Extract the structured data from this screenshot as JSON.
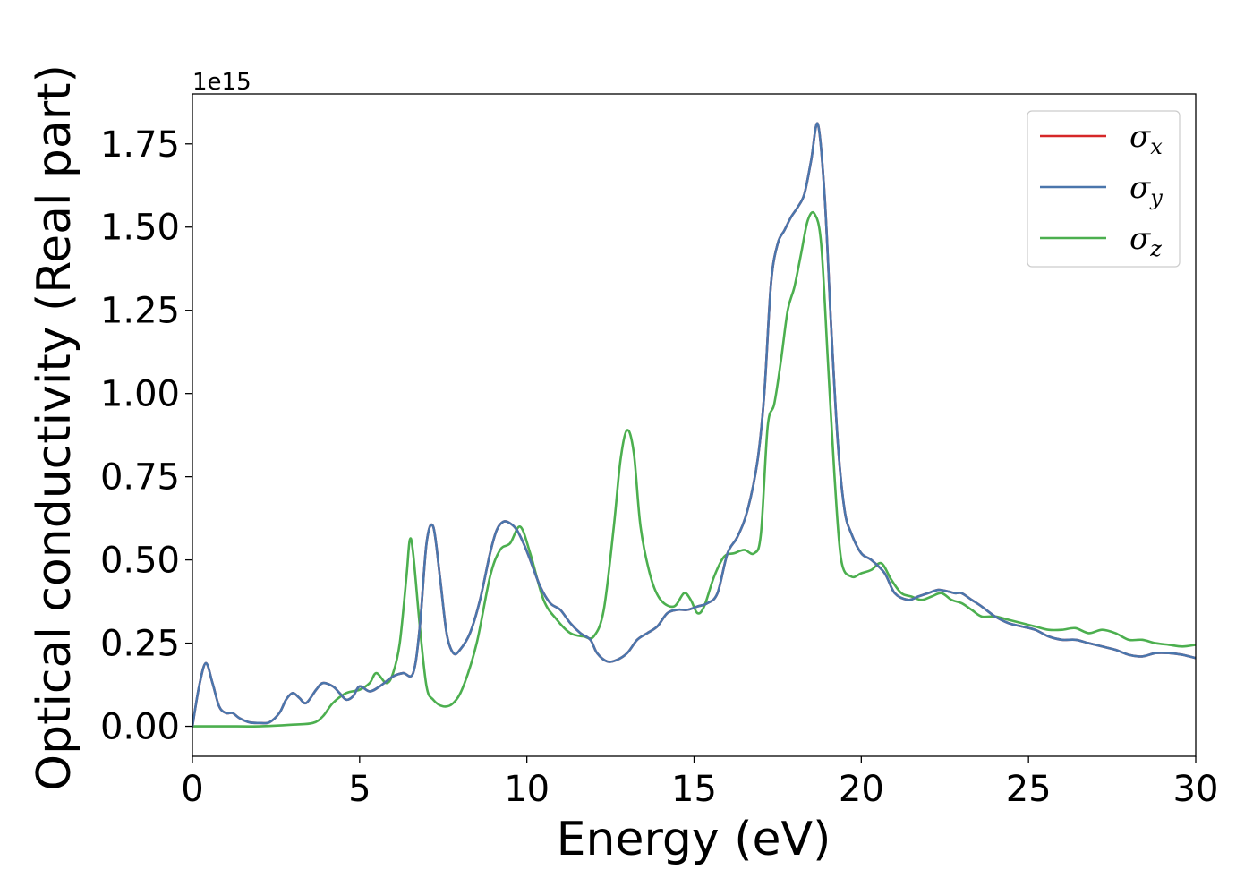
{
  "chart_data": {
    "type": "line",
    "xlabel": "Energy (eV)",
    "ylabel": "Optical conductivity (Real part)",
    "y_offset_label": "1e15",
    "xlim": [
      0,
      30
    ],
    "ylim": [
      -0.09,
      1.9
    ],
    "x_ticks": [
      0,
      5,
      10,
      15,
      20,
      25,
      30
    ],
    "x_tick_labels": [
      "0",
      "5",
      "10",
      "15",
      "20",
      "25",
      "30"
    ],
    "y_ticks": [
      0,
      0.25,
      0.5,
      0.75,
      1.0,
      1.25,
      1.5,
      1.75
    ],
    "y_tick_labels": [
      "0.00",
      "0.25",
      "0.50",
      "0.75",
      "1.00",
      "1.25",
      "1.50",
      "1.75"
    ],
    "grid": false,
    "legend_position": "top-right",
    "series": [
      {
        "name": "σ",
        "subscript": "x",
        "color": "#d62728",
        "x": [
          0,
          0.2,
          0.4,
          0.6,
          0.8,
          1.0,
          1.2,
          1.4,
          1.7,
          2.0,
          2.3,
          2.6,
          2.8,
          3.0,
          3.2,
          3.4,
          3.7,
          3.9,
          4.2,
          4.4,
          4.6,
          4.8,
          5.0,
          5.3,
          5.6,
          6.0,
          6.3,
          6.6,
          6.8,
          7.0,
          7.2,
          7.4,
          7.6,
          7.8,
          8.0,
          8.3,
          8.6,
          8.9,
          9.1,
          9.3,
          9.5,
          9.7,
          9.9,
          10.1,
          10.4,
          10.7,
          11.0,
          11.3,
          11.6,
          11.9,
          12.1,
          12.4,
          12.7,
          13.0,
          13.3,
          13.6,
          13.9,
          14.2,
          14.5,
          14.8,
          15.1,
          15.4,
          15.7,
          16.0,
          16.3,
          16.6,
          16.9,
          17.1,
          17.3,
          17.5,
          17.7,
          17.9,
          18.1,
          18.3,
          18.5,
          18.7,
          18.9,
          19.1,
          19.3,
          19.5,
          19.7,
          20.0,
          20.3,
          20.7,
          21.0,
          21.4,
          21.7,
          22.0,
          22.3,
          22.6,
          22.8,
          23.0,
          23.3,
          23.6,
          24.0,
          24.4,
          24.8,
          25.2,
          25.6,
          26.0,
          26.4,
          26.8,
          27.2,
          27.6,
          28.0,
          28.4,
          28.8,
          29.2,
          29.6,
          30.0
        ],
        "values": [
          0.0,
          0.12,
          0.19,
          0.13,
          0.06,
          0.04,
          0.04,
          0.025,
          0.012,
          0.01,
          0.012,
          0.04,
          0.08,
          0.1,
          0.085,
          0.07,
          0.11,
          0.13,
          0.12,
          0.1,
          0.08,
          0.09,
          0.12,
          0.105,
          0.12,
          0.15,
          0.16,
          0.16,
          0.3,
          0.55,
          0.6,
          0.45,
          0.28,
          0.22,
          0.23,
          0.28,
          0.38,
          0.52,
          0.59,
          0.615,
          0.61,
          0.59,
          0.55,
          0.5,
          0.42,
          0.37,
          0.35,
          0.31,
          0.28,
          0.26,
          0.22,
          0.195,
          0.2,
          0.22,
          0.26,
          0.28,
          0.3,
          0.34,
          0.35,
          0.35,
          0.36,
          0.37,
          0.4,
          0.52,
          0.57,
          0.65,
          0.8,
          1.0,
          1.33,
          1.45,
          1.49,
          1.53,
          1.56,
          1.6,
          1.7,
          1.81,
          1.6,
          1.2,
          0.85,
          0.65,
          0.58,
          0.52,
          0.5,
          0.46,
          0.4,
          0.38,
          0.39,
          0.4,
          0.41,
          0.405,
          0.4,
          0.4,
          0.38,
          0.36,
          0.33,
          0.31,
          0.3,
          0.29,
          0.27,
          0.26,
          0.26,
          0.25,
          0.24,
          0.23,
          0.215,
          0.21,
          0.22,
          0.22,
          0.215,
          0.205
        ]
      },
      {
        "name": "σ",
        "subscript": "y",
        "color": "#4a76ac",
        "x": [
          0,
          0.2,
          0.4,
          0.6,
          0.8,
          1.0,
          1.2,
          1.4,
          1.7,
          2.0,
          2.3,
          2.6,
          2.8,
          3.0,
          3.2,
          3.4,
          3.7,
          3.9,
          4.2,
          4.4,
          4.6,
          4.8,
          5.0,
          5.3,
          5.6,
          6.0,
          6.3,
          6.6,
          6.8,
          7.0,
          7.2,
          7.4,
          7.6,
          7.8,
          8.0,
          8.3,
          8.6,
          8.9,
          9.1,
          9.3,
          9.5,
          9.7,
          9.9,
          10.1,
          10.4,
          10.7,
          11.0,
          11.3,
          11.6,
          11.9,
          12.1,
          12.4,
          12.7,
          13.0,
          13.3,
          13.6,
          13.9,
          14.2,
          14.5,
          14.8,
          15.1,
          15.4,
          15.7,
          16.0,
          16.3,
          16.6,
          16.9,
          17.1,
          17.3,
          17.5,
          17.7,
          17.9,
          18.1,
          18.3,
          18.5,
          18.7,
          18.9,
          19.1,
          19.3,
          19.5,
          19.7,
          20.0,
          20.3,
          20.7,
          21.0,
          21.4,
          21.7,
          22.0,
          22.3,
          22.6,
          22.8,
          23.0,
          23.3,
          23.6,
          24.0,
          24.4,
          24.8,
          25.2,
          25.6,
          26.0,
          26.4,
          26.8,
          27.2,
          27.6,
          28.0,
          28.4,
          28.8,
          29.2,
          29.6,
          30.0
        ],
        "values": [
          0.0,
          0.12,
          0.19,
          0.13,
          0.06,
          0.04,
          0.04,
          0.025,
          0.012,
          0.01,
          0.012,
          0.04,
          0.08,
          0.1,
          0.085,
          0.07,
          0.11,
          0.13,
          0.12,
          0.1,
          0.08,
          0.09,
          0.12,
          0.105,
          0.12,
          0.15,
          0.16,
          0.16,
          0.3,
          0.55,
          0.6,
          0.45,
          0.28,
          0.22,
          0.23,
          0.28,
          0.38,
          0.52,
          0.59,
          0.615,
          0.61,
          0.59,
          0.55,
          0.5,
          0.42,
          0.37,
          0.35,
          0.31,
          0.28,
          0.26,
          0.22,
          0.195,
          0.2,
          0.22,
          0.26,
          0.28,
          0.3,
          0.34,
          0.35,
          0.35,
          0.36,
          0.37,
          0.4,
          0.52,
          0.57,
          0.65,
          0.8,
          1.0,
          1.33,
          1.45,
          1.49,
          1.53,
          1.56,
          1.6,
          1.7,
          1.81,
          1.6,
          1.2,
          0.85,
          0.65,
          0.58,
          0.52,
          0.5,
          0.46,
          0.4,
          0.38,
          0.39,
          0.4,
          0.41,
          0.405,
          0.4,
          0.4,
          0.38,
          0.36,
          0.33,
          0.31,
          0.3,
          0.29,
          0.27,
          0.26,
          0.26,
          0.25,
          0.24,
          0.23,
          0.215,
          0.21,
          0.22,
          0.22,
          0.215,
          0.205
        ]
      },
      {
        "name": "σ",
        "subscript": "z",
        "color": "#4caf4f",
        "x": [
          0,
          1.0,
          2.0,
          3.0,
          3.6,
          3.9,
          4.2,
          4.6,
          5.0,
          5.3,
          5.5,
          5.8,
          6.0,
          6.2,
          6.4,
          6.5,
          6.6,
          6.8,
          7.0,
          7.2,
          7.5,
          7.8,
          8.1,
          8.5,
          8.9,
          9.2,
          9.5,
          9.8,
          10.1,
          10.5,
          10.9,
          11.3,
          11.7,
          12.0,
          12.3,
          12.6,
          12.8,
          13.0,
          13.2,
          13.4,
          13.7,
          14.0,
          14.4,
          14.7,
          14.9,
          15.1,
          15.3,
          15.6,
          15.9,
          16.2,
          16.5,
          16.8,
          17.0,
          17.2,
          17.4,
          17.6,
          17.8,
          18.0,
          18.2,
          18.4,
          18.6,
          18.8,
          19.0,
          19.2,
          19.4,
          19.7,
          20.0,
          20.3,
          20.6,
          20.9,
          21.2,
          21.5,
          21.8,
          22.1,
          22.4,
          22.7,
          23.0,
          23.3,
          23.6,
          24.0,
          24.4,
          24.8,
          25.2,
          25.6,
          26.0,
          26.4,
          26.8,
          27.2,
          27.6,
          28.0,
          28.4,
          28.8,
          29.2,
          29.6,
          30.0
        ],
        "values": [
          0.0,
          0.0,
          0.0,
          0.005,
          0.01,
          0.03,
          0.07,
          0.1,
          0.11,
          0.13,
          0.16,
          0.13,
          0.16,
          0.25,
          0.45,
          0.56,
          0.52,
          0.3,
          0.12,
          0.08,
          0.06,
          0.07,
          0.12,
          0.25,
          0.45,
          0.53,
          0.55,
          0.6,
          0.52,
          0.38,
          0.32,
          0.28,
          0.27,
          0.27,
          0.35,
          0.6,
          0.8,
          0.89,
          0.82,
          0.6,
          0.45,
          0.38,
          0.36,
          0.4,
          0.38,
          0.34,
          0.36,
          0.45,
          0.51,
          0.52,
          0.53,
          0.52,
          0.58,
          0.9,
          0.97,
          1.1,
          1.25,
          1.32,
          1.42,
          1.52,
          1.54,
          1.45,
          1.1,
          0.75,
          0.5,
          0.45,
          0.46,
          0.47,
          0.49,
          0.44,
          0.4,
          0.39,
          0.38,
          0.39,
          0.4,
          0.38,
          0.37,
          0.35,
          0.33,
          0.33,
          0.32,
          0.31,
          0.3,
          0.29,
          0.29,
          0.295,
          0.28,
          0.29,
          0.28,
          0.26,
          0.26,
          0.25,
          0.245,
          0.24,
          0.245
        ]
      }
    ]
  }
}
